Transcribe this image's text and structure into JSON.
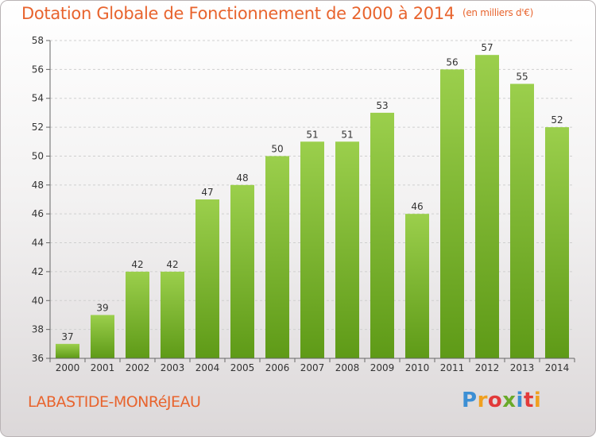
{
  "title": "Dotation Globale de Fonctionnement de 2000 à 2014",
  "unit": "(en milliers d'€)",
  "commune": "LABASTIDE-MONRéJEAU",
  "logo": {
    "letters": [
      "P",
      "r",
      "o",
      "x",
      "i",
      "t",
      "i"
    ],
    "colors": [
      "#3c8fd4",
      "#f0a020",
      "#e23a3a",
      "#6aaa2a",
      "#3c8fd4",
      "#e23a3a",
      "#f0a020"
    ]
  },
  "chart_data": {
    "type": "bar",
    "categories": [
      "2000",
      "2001",
      "2002",
      "2003",
      "2004",
      "2005",
      "2006",
      "2007",
      "2008",
      "2009",
      "2010",
      "2011",
      "2012",
      "2013",
      "2014"
    ],
    "values": [
      37,
      39,
      42,
      42,
      47,
      48,
      50,
      51,
      51,
      53,
      46,
      56,
      57,
      55,
      52
    ],
    "ylim": [
      36,
      58
    ],
    "yticks": [
      36,
      38,
      40,
      42,
      44,
      46,
      48,
      50,
      52,
      54,
      56,
      58
    ],
    "grid": true,
    "bar_color_top": "#9bcf4c",
    "bar_color_bottom": "#5e9a17"
  }
}
